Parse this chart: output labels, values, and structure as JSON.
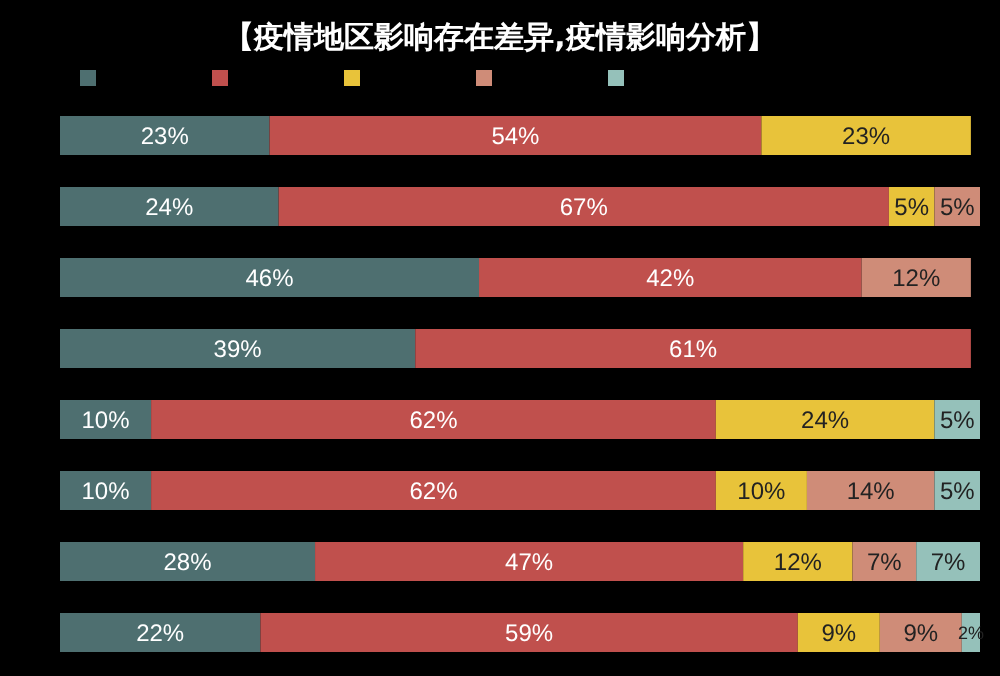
{
  "chart_data": {
    "type": "bar",
    "orientation": "horizontal",
    "stacked": true,
    "title": "【疫情地区影响存在差异,疫情影响分析】",
    "categories": [
      null,
      null,
      null,
      null,
      null,
      null,
      null,
      null
    ],
    "xlim": [
      0,
      101
    ],
    "tick_labels": false,
    "series": [
      {
        "color": "#4e6f70",
        "values": [
          23,
          24,
          46,
          39,
          10,
          10,
          28,
          22
        ],
        "value_labels": [
          "23%",
          "24%",
          "46%",
          "39%",
          "10%",
          "10%",
          "28%",
          "22%"
        ]
      },
      {
        "color": "#c0504d",
        "values": [
          54,
          67,
          42,
          61,
          62,
          62,
          47,
          59
        ],
        "value_labels": [
          "54%",
          "67%",
          "42%",
          "61%",
          "62%",
          "62%",
          "47%",
          "59%"
        ]
      },
      {
        "color": "#e8c33a",
        "values": [
          23,
          5,
          null,
          null,
          24,
          10,
          12,
          9
        ],
        "value_labels": [
          "23%",
          "5%",
          null,
          null,
          "24%",
          "10%",
          "12%",
          "9%"
        ]
      },
      {
        "color": "#cf8c78",
        "values": [
          null,
          5,
          12,
          null,
          null,
          14,
          7,
          9
        ],
        "value_labels": [
          null,
          "5%",
          "12%",
          null,
          null,
          "14%",
          "7%",
          "9%"
        ]
      },
      {
        "color": "#95c1ba",
        "values": [
          null,
          null,
          null,
          null,
          5,
          5,
          7,
          2
        ],
        "value_labels": [
          null,
          null,
          null,
          null,
          "5%",
          "5%",
          "7%",
          "2%"
        ]
      }
    ]
  }
}
